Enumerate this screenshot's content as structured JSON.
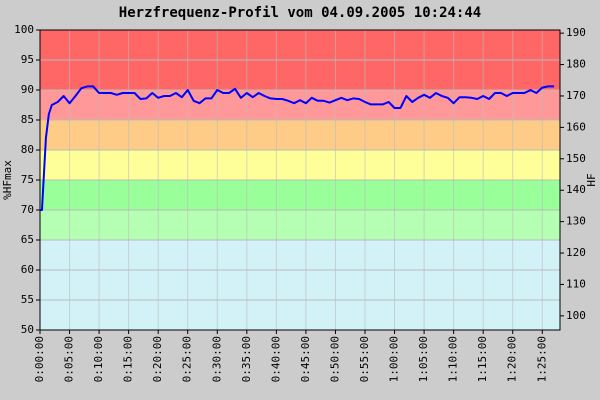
{
  "chart_data": {
    "type": "line",
    "title": "Herzfrequenz-Profil vom 04.09.2005 10:24:44",
    "ylabel": "%HFmax",
    "y2label": "HF",
    "x": [
      0,
      20,
      60,
      90,
      120,
      180,
      240,
      300,
      360,
      420,
      480,
      540,
      600,
      660,
      720,
      780,
      840,
      900,
      960,
      1020,
      1080,
      1140,
      1200,
      1260,
      1320,
      1380,
      1440,
      1500,
      1560,
      1620,
      1680,
      1740,
      1800,
      1860,
      1920,
      1980,
      2040,
      2100,
      2160,
      2220,
      2280,
      2340,
      2400,
      2460,
      2520,
      2580,
      2640,
      2700,
      2760,
      2820,
      2880,
      2940,
      3000,
      3060,
      3120,
      3180,
      3240,
      3300,
      3360,
      3420,
      3480,
      3540,
      3600,
      3660,
      3720,
      3780,
      3840,
      3900,
      3960,
      4020,
      4080,
      4140,
      4200,
      4260,
      4320,
      4380,
      4440,
      4500,
      4560,
      4620,
      4680,
      4740,
      4800,
      4860,
      4920,
      4980,
      5040,
      5100,
      5160,
      5220
    ],
    "values": [
      70,
      70,
      82,
      86,
      87.5,
      88,
      89,
      87.8,
      89,
      90.3,
      90.6,
      90.6,
      89.5,
      89.5,
      89.5,
      89.2,
      89.5,
      89.5,
      89.5,
      88.5,
      88.6,
      89.5,
      88.7,
      89,
      89,
      89.5,
      88.8,
      90,
      88.2,
      87.8,
      88.6,
      88.6,
      90,
      89.5,
      89.5,
      90.2,
      88.7,
      89.5,
      88.8,
      89.5,
      89,
      88.6,
      88.5,
      88.5,
      88.2,
      87.8,
      88.3,
      87.8,
      88.7,
      88.2,
      88.2,
      87.9,
      88.3,
      88.7,
      88.3,
      88.6,
      88.5,
      88,
      87.6,
      87.6,
      87.6,
      88,
      87,
      87,
      89,
      88,
      88.7,
      89.2,
      88.7,
      89.5,
      89,
      88.7,
      87.8,
      88.8,
      88.8,
      88.7,
      88.5,
      89,
      88.5,
      89.5,
      89.5,
      89,
      89.5,
      89.5,
      89.5,
      90,
      89.5,
      90.4,
      90.6,
      90.6
    ],
    "color": "#0000ff",
    "xlim": [
      0,
      5280
    ],
    "xticks": [
      {
        "value": 0,
        "label": "0:00:00"
      },
      {
        "value": 300,
        "label": "0:05:00"
      },
      {
        "value": 600,
        "label": "0:10:00"
      },
      {
        "value": 900,
        "label": "0:15:00"
      },
      {
        "value": 1200,
        "label": "0:20:00"
      },
      {
        "value": 1500,
        "label": "0:25:00"
      },
      {
        "value": 1800,
        "label": "0:30:00"
      },
      {
        "value": 2100,
        "label": "0:35:00"
      },
      {
        "value": 2400,
        "label": "0:40:00"
      },
      {
        "value": 2700,
        "label": "0:45:00"
      },
      {
        "value": 3000,
        "label": "0:50:00"
      },
      {
        "value": 3300,
        "label": "0:55:00"
      },
      {
        "value": 3600,
        "label": "1:00:00"
      },
      {
        "value": 3900,
        "label": "1:05:00"
      },
      {
        "value": 4200,
        "label": "1:10:00"
      },
      {
        "value": 4500,
        "label": "1:15:00"
      },
      {
        "value": 4800,
        "label": "1:20:00"
      },
      {
        "value": 5100,
        "label": "1:25:00"
      }
    ],
    "ylim": [
      50,
      100
    ],
    "yticks": [
      50,
      55,
      60,
      65,
      70,
      75,
      80,
      85,
      90,
      95,
      100
    ],
    "y2lim": [
      95.5,
      191
    ],
    "y2ticks": [
      100,
      110,
      120,
      130,
      140,
      150,
      160,
      170,
      180,
      190
    ],
    "zones": [
      {
        "from": 50,
        "to": 65,
        "color": "#d2f2f8"
      },
      {
        "from": 65,
        "to": 70,
        "color": "#b4ffb4"
      },
      {
        "from": 70,
        "to": 75,
        "color": "#99ff99"
      },
      {
        "from": 75,
        "to": 80,
        "color": "#ffff99"
      },
      {
        "from": 80,
        "to": 85,
        "color": "#ffcc88"
      },
      {
        "from": 85,
        "to": 90,
        "color": "#ff9999"
      },
      {
        "from": 90,
        "to": 100,
        "color": "#ff6666"
      }
    ],
    "grid": true
  }
}
